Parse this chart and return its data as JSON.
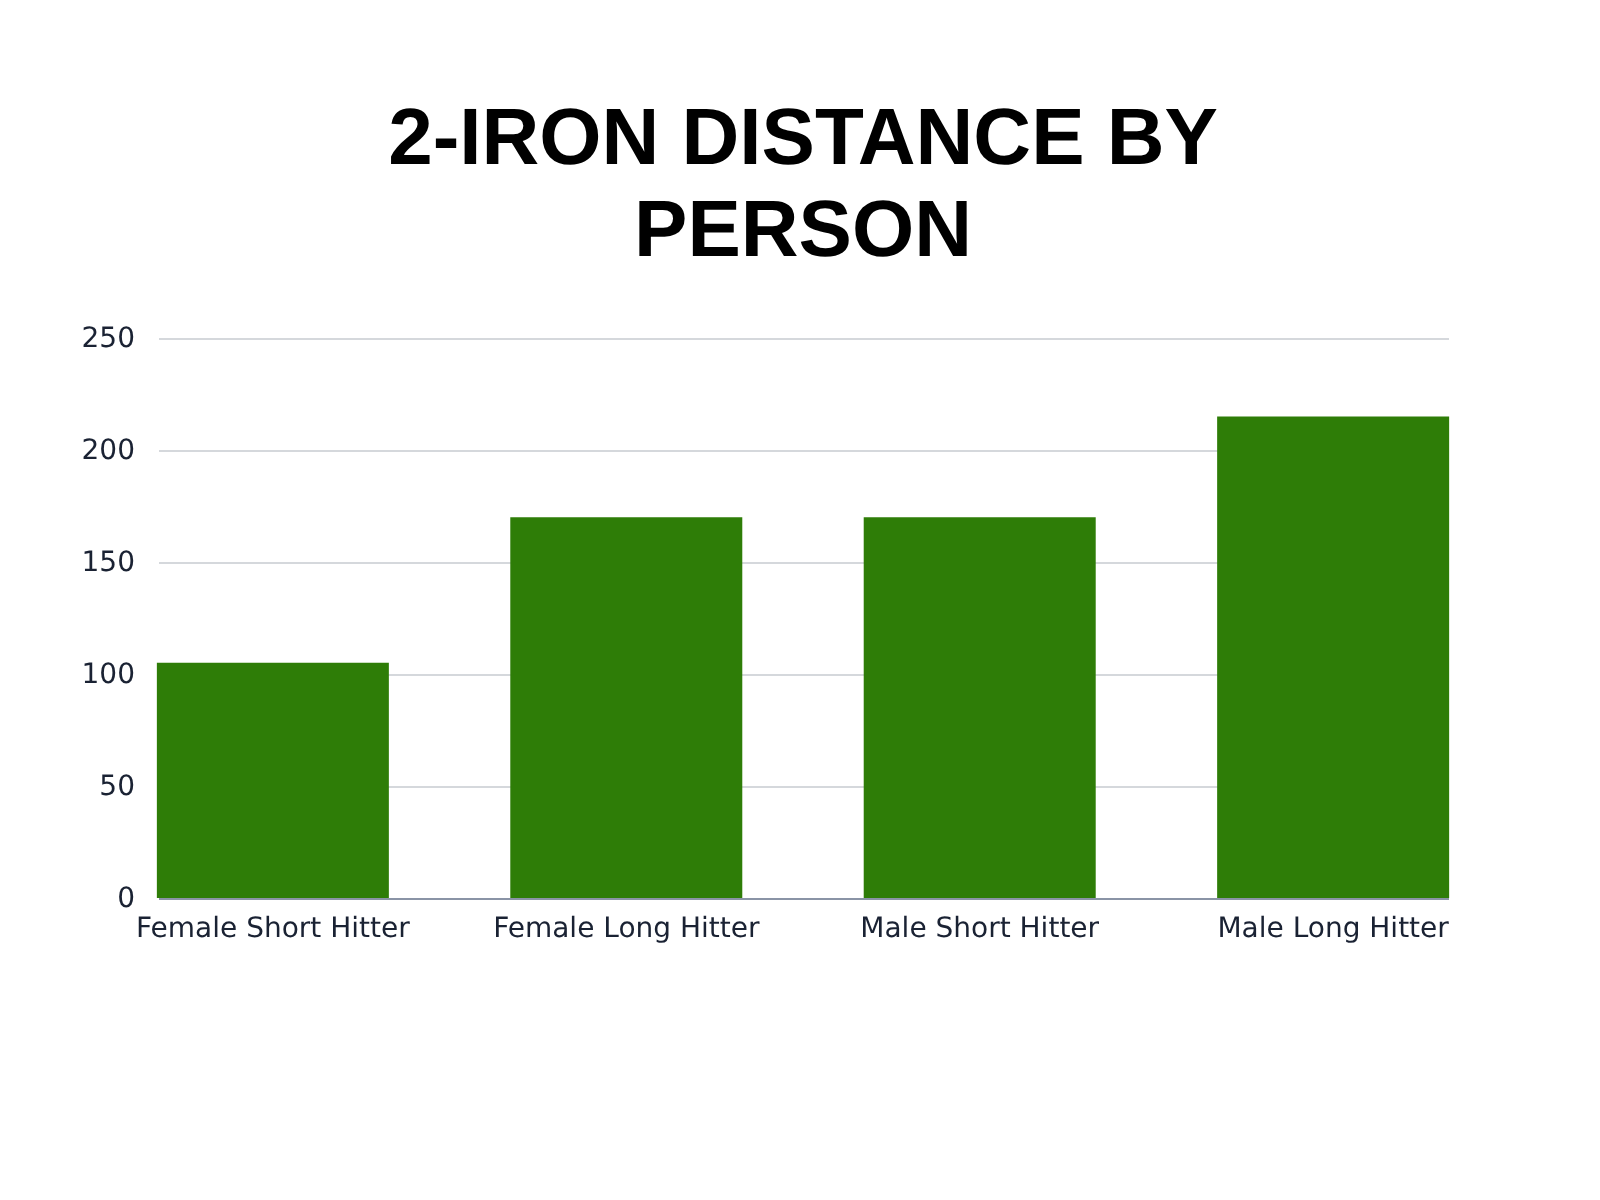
{
  "chart_data": {
    "type": "bar",
    "title": "2-IRON DISTANCE BY PERSON",
    "categories": [
      "Female Short Hitter",
      "Female Long Hitter",
      "Male Short Hitter",
      "Male Long Hitter"
    ],
    "values": [
      105,
      170,
      170,
      215
    ],
    "color": "#2e7d07",
    "ylim": [
      0,
      250
    ],
    "yticks": [
      0,
      50,
      100,
      150,
      200,
      250
    ],
    "grid": "y"
  }
}
